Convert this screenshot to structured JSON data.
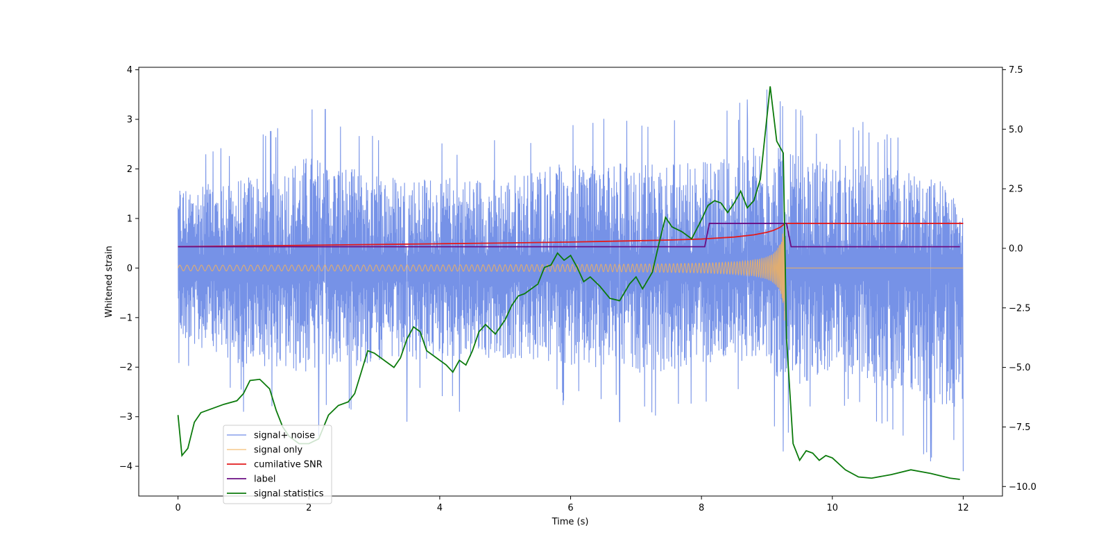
{
  "chart_data": {
    "type": "line",
    "xlabel": "Time (s)",
    "ylabel": "Whitened strain",
    "xlim": [
      -0.6,
      12.6
    ],
    "ylim": [
      -4.6,
      4.05
    ],
    "y2lim": [
      -10.4,
      7.6
    ],
    "xticks": [
      0,
      2,
      4,
      6,
      8,
      10,
      12
    ],
    "xtick_labels": [
      "0",
      "2",
      "4",
      "6",
      "8",
      "10",
      "12"
    ],
    "yticks": [
      -4,
      -3,
      -2,
      -1,
      0,
      1,
      2,
      3,
      4
    ],
    "ytick_labels": [
      "−4",
      "−3",
      "−2",
      "−1",
      "0",
      "1",
      "2",
      "3",
      "4"
    ],
    "y2ticks": [
      -10,
      -7.5,
      -5,
      -2.5,
      0,
      2.5,
      5,
      7.5
    ],
    "y2tick_labels": [
      "−10.0",
      "−7.5",
      "−5.0",
      "−2.5",
      "0.0",
      "2.5",
      "5.0",
      "7.5"
    ],
    "legend_position": "lower-left",
    "grid": false,
    "series": [
      {
        "name": "signal+ noise",
        "color": "#6f8ce6",
        "axis": "left",
        "kind": "noise",
        "x_range": [
          0,
          12
        ],
        "envelope_upper": [
          [
            0,
            2.4
          ],
          [
            1,
            2.6
          ],
          [
            2,
            3.2
          ],
          [
            3,
            2.7
          ],
          [
            4,
            2.6
          ],
          [
            5,
            2.6
          ],
          [
            6,
            3.2
          ],
          [
            7,
            3.0
          ],
          [
            8,
            3.1
          ],
          [
            9,
            3.6
          ],
          [
            10,
            3.0
          ],
          [
            11,
            2.9
          ],
          [
            12,
            2.3
          ]
        ],
        "envelope_lower": [
          [
            0,
            -2.0
          ],
          [
            1,
            -2.9
          ],
          [
            2,
            -3.0
          ],
          [
            3,
            -2.8
          ],
          [
            4,
            -2.6
          ],
          [
            5,
            -2.6
          ],
          [
            6,
            -2.8
          ],
          [
            7,
            -3.1
          ],
          [
            8,
            -2.8
          ],
          [
            9,
            -2.7
          ],
          [
            9.2,
            -3.7
          ],
          [
            10,
            -2.9
          ],
          [
            11.5,
            -3.9
          ],
          [
            12,
            -4.1
          ]
        ],
        "spikes": [
          [
            2.05,
            3.2
          ],
          [
            2.25,
            3.2
          ],
          [
            9.0,
            3.6
          ],
          [
            9.25,
            3.4
          ],
          [
            8.7,
            3.4
          ],
          [
            2.15,
            -3.4
          ],
          [
            3.5,
            -3.1
          ],
          [
            6.75,
            -3.1
          ],
          [
            9.25,
            -3.7
          ],
          [
            11.5,
            -3.9
          ],
          [
            12.0,
            -4.1
          ],
          [
            1.0,
            -2.9
          ],
          [
            4.3,
            -2.9
          ]
        ]
      },
      {
        "name": "signal only",
        "color": "#f3b25c",
        "axis": "left",
        "kind": "chirp",
        "x_range": [
          0,
          12
        ],
        "merger_time": 9.28,
        "amplitude_start": 0.05,
        "amplitude_peak": 1.35
      },
      {
        "name": "cumilative SNR",
        "color": "#e31a1c",
        "axis": "left",
        "kind": "line",
        "x": [
          0,
          1,
          2,
          3,
          4,
          5,
          6,
          7,
          7.5,
          8,
          8.5,
          8.8,
          9.0,
          9.1,
          9.2,
          9.28,
          12
        ],
        "values": [
          0.43,
          0.445,
          0.46,
          0.475,
          0.49,
          0.505,
          0.525,
          0.55,
          0.565,
          0.585,
          0.625,
          0.67,
          0.72,
          0.76,
          0.82,
          0.9,
          0.9
        ]
      },
      {
        "name": "label",
        "color": "#6a0d83",
        "axis": "left",
        "kind": "line",
        "x": [
          0,
          8.05,
          8.12,
          9.3,
          9.37,
          11.95
        ],
        "values": [
          0.43,
          0.43,
          0.9,
          0.9,
          0.43,
          0.43
        ]
      },
      {
        "name": "signal statistics",
        "color": "#0b7a0b",
        "axis": "right",
        "kind": "line",
        "x": [
          0,
          0.06,
          0.15,
          0.25,
          0.35,
          0.5,
          0.7,
          0.9,
          1.0,
          1.1,
          1.25,
          1.4,
          1.5,
          1.6,
          1.7,
          1.85,
          2.0,
          2.15,
          2.3,
          2.45,
          2.6,
          2.7,
          2.8,
          2.9,
          3.0,
          3.2,
          3.3,
          3.4,
          3.5,
          3.6,
          3.7,
          3.8,
          3.95,
          4.1,
          4.2,
          4.3,
          4.4,
          4.5,
          4.6,
          4.7,
          4.85,
          5.0,
          5.1,
          5.2,
          5.3,
          5.4,
          5.5,
          5.6,
          5.7,
          5.8,
          5.9,
          6.0,
          6.1,
          6.2,
          6.3,
          6.45,
          6.6,
          6.75,
          6.9,
          7.0,
          7.1,
          7.25,
          7.35,
          7.45,
          7.55,
          7.7,
          7.85,
          8.0,
          8.1,
          8.2,
          8.3,
          8.4,
          8.5,
          8.6,
          8.7,
          8.8,
          8.9,
          9.0,
          9.05,
          9.15,
          9.25,
          9.3,
          9.4,
          9.5,
          9.6,
          9.7,
          9.8,
          9.9,
          10.0,
          10.2,
          10.4,
          10.6,
          10.9,
          11.2,
          11.5,
          11.8,
          11.95
        ],
        "values": [
          -7.0,
          -8.7,
          -8.4,
          -7.3,
          -6.9,
          -6.75,
          -6.55,
          -6.4,
          -6.1,
          -5.55,
          -5.5,
          -5.9,
          -6.8,
          -7.5,
          -7.9,
          -8.2,
          -8.2,
          -8.0,
          -7.0,
          -6.6,
          -6.45,
          -6.1,
          -5.2,
          -4.3,
          -4.4,
          -4.8,
          -5.0,
          -4.6,
          -3.8,
          -3.3,
          -3.5,
          -4.3,
          -4.6,
          -4.9,
          -5.2,
          -4.7,
          -4.9,
          -4.3,
          -3.5,
          -3.2,
          -3.6,
          -3.0,
          -2.4,
          -2.0,
          -1.9,
          -1.7,
          -1.5,
          -0.8,
          -0.7,
          -0.2,
          -0.5,
          -0.3,
          -0.8,
          -1.4,
          -1.2,
          -1.6,
          -2.1,
          -2.2,
          -1.5,
          -1.2,
          -1.7,
          -1.0,
          0.2,
          1.3,
          0.9,
          0.7,
          0.4,
          1.2,
          1.8,
          2.0,
          1.9,
          1.5,
          1.9,
          2.4,
          1.7,
          2.0,
          2.9,
          5.5,
          6.8,
          4.5,
          4.0,
          -3.8,
          -8.2,
          -8.9,
          -8.5,
          -8.6,
          -8.9,
          -8.7,
          -8.8,
          -9.3,
          -9.6,
          -9.65,
          -9.5,
          -9.3,
          -9.45,
          -9.65,
          -9.7
        ]
      }
    ]
  }
}
